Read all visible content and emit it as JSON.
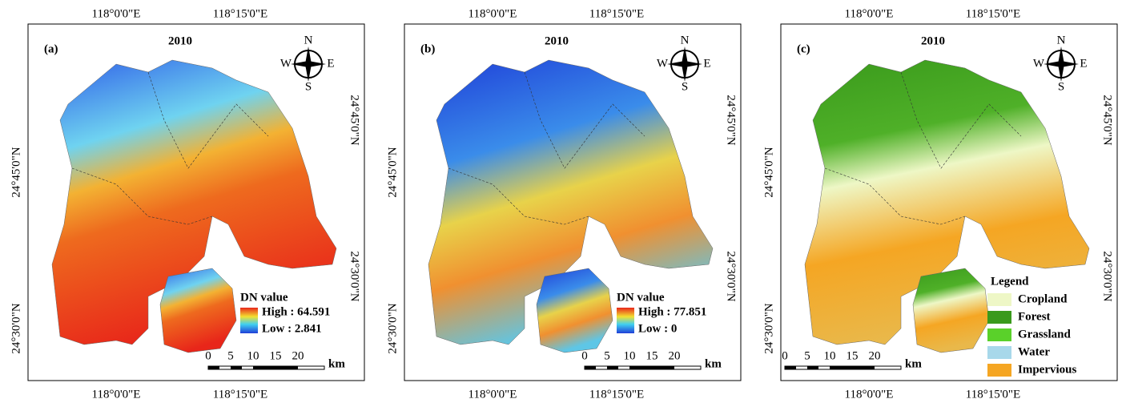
{
  "panels": [
    {
      "label": "(a)",
      "year": "2010",
      "top_labels": [
        "118°0'0\"E",
        "118°15'0\"E"
      ],
      "bottom_labels": [
        "118°0'0\"E",
        "118°15'0\"E"
      ],
      "left_labels": [
        "24°45'0\"N",
        "24°30'0\"N"
      ],
      "right_labels": [
        "24°45'0\"N",
        "24°30'0\"N"
      ],
      "compass": {
        "n": "N",
        "e": "E",
        "s": "S",
        "w": "W"
      },
      "legend": {
        "title": "DN value",
        "high": "High : 64.591",
        "low": "Low : 2.841"
      },
      "scale": {
        "ticks": [
          "0",
          "5",
          "10",
          "15",
          "20"
        ],
        "unit": "km"
      }
    },
    {
      "label": "(b)",
      "year": "2010",
      "top_labels": [
        "118°0'0\"E",
        "118°15'0\"E"
      ],
      "bottom_labels": [
        "118°0'0\"E",
        "118°15'0\"E"
      ],
      "left_labels": [
        "24°45'0\"N",
        "24°30'0\"N"
      ],
      "right_labels": [
        "24°45'0\"N",
        "24°30'0\"N"
      ],
      "compass": {
        "n": "N",
        "e": "E",
        "s": "S",
        "w": "W"
      },
      "legend": {
        "title": "DN value",
        "high": "High : 77.851",
        "low": "Low : 0"
      },
      "scale": {
        "ticks": [
          "0",
          "5",
          "10",
          "15",
          "20"
        ],
        "unit": "km"
      }
    },
    {
      "label": "(c)",
      "year": "2010",
      "top_labels": [
        "118°0'0\"E",
        "118°15'0\"E"
      ],
      "bottom_labels": [
        "118°0'0\"E",
        "118°15'0\"E"
      ],
      "left_labels": [
        "24°45'0\"N",
        "24°30'0\"N"
      ],
      "right_labels": [
        "24°45'0\"N",
        "24°30'0\"N"
      ],
      "compass": {
        "n": "N",
        "e": "E",
        "s": "S",
        "w": "W"
      },
      "legend": {
        "title": "Legend",
        "items": [
          {
            "name": "Cropland",
            "color": "#eef7c6"
          },
          {
            "name": "Forest",
            "color": "#3a9a1c"
          },
          {
            "name": "Grassland",
            "color": "#5ad12a"
          },
          {
            "name": "Water",
            "color": "#a8d8ea"
          },
          {
            "name": "Impervious",
            "color": "#f5a623"
          }
        ]
      },
      "scale": {
        "ticks": [
          "0",
          "5",
          "10",
          "15",
          "20"
        ],
        "unit": "km"
      }
    }
  ]
}
